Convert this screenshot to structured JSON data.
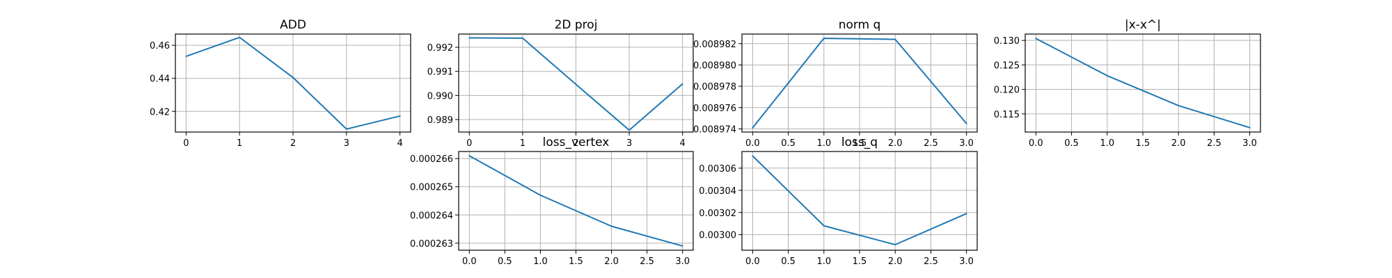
{
  "figure": {
    "line_color": "#1f77b4",
    "grid": true
  },
  "chart_data": [
    {
      "type": "line",
      "title": "ADD",
      "x": [
        0,
        1,
        2,
        3,
        4
      ],
      "series": [
        {
          "values": [
            0.4533,
            0.4648,
            0.4405,
            0.4093,
            0.4172
          ]
        }
      ],
      "xlim": [
        -0.2,
        4.2
      ],
      "ylim": [
        0.4075,
        0.4668
      ],
      "xticks": [
        0,
        1,
        2,
        3,
        4
      ],
      "xtick_labels": [
        "0",
        "1",
        "2",
        "3",
        "4"
      ],
      "yticks": [
        0.42,
        0.44,
        0.46
      ],
      "ytick_labels": [
        "0.42",
        "0.44",
        "0.46"
      ]
    },
    {
      "type": "line",
      "title": "2D proj",
      "x": [
        0,
        1,
        2,
        3,
        4
      ],
      "series": [
        {
          "values": [
            0.99239,
            0.99238,
            0.99046,
            0.98856,
            0.99048
          ]
        }
      ],
      "xlim": [
        -0.2,
        4.2
      ],
      "ylim": [
        0.98848,
        0.99255
      ],
      "xticks": [
        0,
        1,
        2,
        3,
        4
      ],
      "xtick_labels": [
        "0",
        "1",
        "2",
        "3",
        "4"
      ],
      "yticks": [
        0.989,
        0.99,
        0.991,
        0.992
      ],
      "ytick_labels": [
        "0.989",
        "0.990",
        "0.991",
        "0.992"
      ]
    },
    {
      "type": "line",
      "title": "norm q",
      "x": [
        0,
        1,
        2,
        3
      ],
      "series": [
        {
          "values": [
            0.0089741,
            0.0089825,
            0.0089824,
            0.0089745
          ]
        }
      ],
      "xlim": [
        -0.15,
        3.15
      ],
      "ylim": [
        0.0089737,
        0.0089829
      ],
      "xticks": [
        0,
        0.5,
        1,
        1.5,
        2,
        2.5,
        3
      ],
      "xtick_labels": [
        "0.0",
        "0.5",
        "1.0",
        "1.5",
        "2.0",
        "2.5",
        "3.0"
      ],
      "yticks": [
        0.008974,
        0.008976,
        0.008978,
        0.00898,
        0.008982
      ],
      "ytick_labels": [
        "0.008974",
        "0.008976",
        "0.008978",
        "0.008980",
        "0.008982"
      ]
    },
    {
      "type": "line",
      "title": "|x-x^|",
      "x": [
        0,
        1,
        2,
        3
      ],
      "series": [
        {
          "values": [
            0.1304,
            0.1228,
            0.1167,
            0.1122
          ]
        }
      ],
      "xlim": [
        -0.15,
        3.15
      ],
      "ylim": [
        0.1113,
        0.1313
      ],
      "xticks": [
        0,
        0.5,
        1,
        1.5,
        2,
        2.5,
        3
      ],
      "xtick_labels": [
        "0.0",
        "0.5",
        "1.0",
        "1.5",
        "2.0",
        "2.5",
        "3.0"
      ],
      "yticks": [
        0.115,
        0.12,
        0.125,
        0.13
      ],
      "ytick_labels": [
        "0.115",
        "0.120",
        "0.125",
        "0.130"
      ]
    },
    {
      "type": "line",
      "title": "loss_vertex",
      "x": [
        0,
        1,
        2,
        3
      ],
      "series": [
        {
          "values": [
            0.0002661,
            0.0002647,
            0.0002636,
            0.0002629
          ]
        }
      ],
      "xlim": [
        -0.15,
        3.15
      ],
      "ylim": [
        0.00026275,
        0.00026625
      ],
      "xticks": [
        0,
        0.5,
        1,
        1.5,
        2,
        2.5,
        3
      ],
      "xtick_labels": [
        "0.0",
        "0.5",
        "1.0",
        "1.5",
        "2.0",
        "2.5",
        "3.0"
      ],
      "yticks": [
        0.000263,
        0.000264,
        0.000265,
        0.000266
      ],
      "ytick_labels": [
        "0.000263",
        "0.000264",
        "0.000265",
        "0.000266"
      ]
    },
    {
      "type": "line",
      "title": "loss_q",
      "x": [
        0,
        1,
        2,
        3
      ],
      "series": [
        {
          "values": [
            0.003071,
            0.003008,
            0.002991,
            0.003019
          ]
        }
      ],
      "xlim": [
        -0.15,
        3.15
      ],
      "ylim": [
        0.002986,
        0.003075
      ],
      "xticks": [
        0,
        0.5,
        1,
        1.5,
        2,
        2.5,
        3
      ],
      "xtick_labels": [
        "0.0",
        "0.5",
        "1.0",
        "1.5",
        "2.0",
        "2.5",
        "3.0"
      ],
      "yticks": [
        0.003,
        0.00302,
        0.00304,
        0.00306
      ],
      "ytick_labels": [
        "0.00300",
        "0.00302",
        "0.00304",
        "0.00306"
      ]
    }
  ]
}
